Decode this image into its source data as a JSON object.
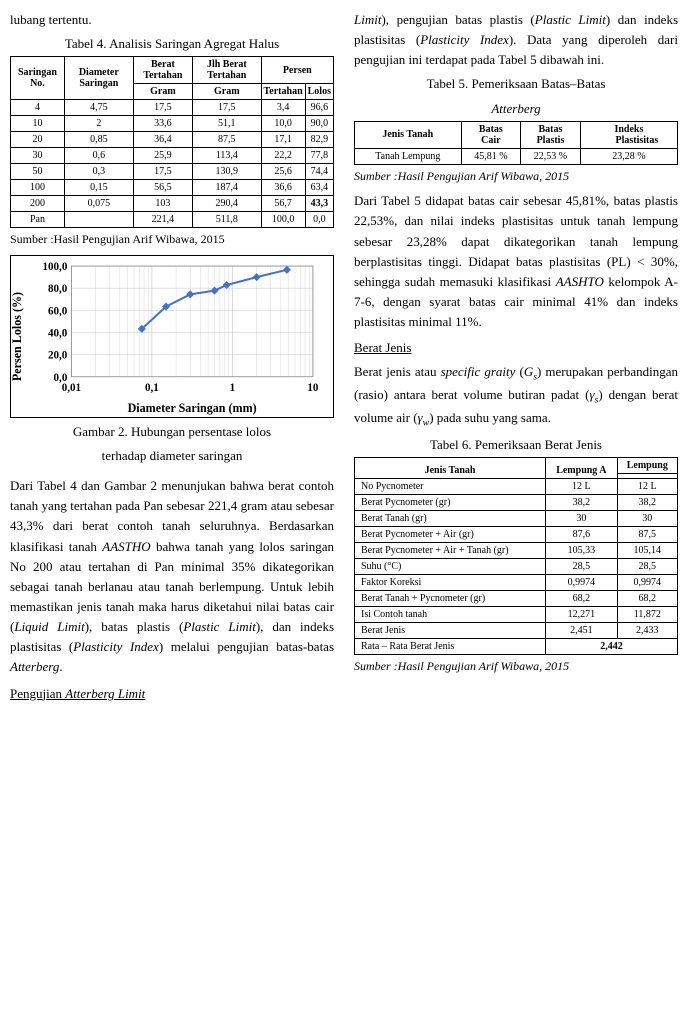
{
  "left": {
    "intro": "lubang tertentu.",
    "table4": {
      "caption": "Tabel 4. Analisis Saringan Agregat Halus",
      "headers": {
        "saringan": "Saringan No.",
        "diameter": "Diameter Saringan",
        "berat": "Berat Tertahan",
        "jlh": "Jlh Berat Tertahan",
        "persen": "Persen",
        "gram": "Gram",
        "tertahan": "Tertahan",
        "lolos": "Lolos"
      },
      "rows": [
        [
          "4",
          "4,75",
          "17,5",
          "17,5",
          "3,4",
          "96,6"
        ],
        [
          "10",
          "2",
          "33,6",
          "51,1",
          "10,0",
          "90,0"
        ],
        [
          "20",
          "0,85",
          "36,4",
          "87,5",
          "17,1",
          "82,9"
        ],
        [
          "30",
          "0,6",
          "25,9",
          "113,4",
          "22,2",
          "77,8"
        ],
        [
          "50",
          "0,3",
          "17,5",
          "130,9",
          "25,6",
          "74,4"
        ],
        [
          "100",
          "0,15",
          "56,5",
          "187,4",
          "36,6",
          "63,4"
        ],
        [
          "200",
          "0,075",
          "103",
          "290,4",
          "56,7",
          "43,3"
        ],
        [
          "Pan",
          "",
          "221,4",
          "511,8",
          "100,0",
          "0,0"
        ]
      ],
      "source": "Sumber :Hasil Pengujian Arif Wibawa, 2015"
    },
    "chart": {
      "ylabel": "Persen Lolos (%)",
      "xlabel": "Diameter Saringan (mm)",
      "yticks": [
        "0,0",
        "20,0",
        "40,0",
        "60,0",
        "80,0",
        "100,0"
      ],
      "xticks": [
        "0,01",
        "0,1",
        "1",
        "10"
      ],
      "series_color": "#4472c4",
      "marker_shape": "diamond",
      "grid_color": "#d0d0d0",
      "points_log": [
        [
          -1.125,
          43.3
        ],
        [
          -0.824,
          63.4
        ],
        [
          -0.523,
          74.4
        ],
        [
          -0.222,
          77.8
        ],
        [
          -0.071,
          82.9
        ],
        [
          0.301,
          90.0
        ],
        [
          0.677,
          96.6
        ]
      ],
      "xlim_log": [
        -2,
        1
      ],
      "ylim": [
        0,
        100
      ]
    },
    "fig2_caption1": "Gambar 2. Hubungan persentase lolos",
    "fig2_caption2": "terhadap diameter saringan",
    "para1": "Dari Tabel 4 dan Gambar 2 menunjukan bahwa berat contoh tanah yang tertahan pada Pan sebesar 221,4 gram atau sebesar 43,3% dari berat contoh tanah seluruhnya. Berdasarkan klasifikasi tanah ",
    "para1_ital1": "AASTHO",
    "para1b": " bahwa tanah yang lolos saringan No 200 atau tertahan di Pan minimal 35% dikategorikan sebagai tanah berlanau atau tanah berlempung. Untuk lebih memastikan jenis tanah maka harus diketahui nilai batas cair (",
    "para1_ital2": "Liquid Limit",
    "para1c": "), batas plastis (",
    "para1_ital3": "Plastic Limit",
    "para1d": "), dan indeks plastisitas (",
    "para1_ital4": "Plasticity Index",
    "para1e": ") melalui pengujian batas-batas ",
    "para1_ital5": "Atterberg",
    "para1f": ".",
    "heading_atterberg": "Pengujian ",
    "heading_atterberg_ital": "Atterberg Limit"
  },
  "right": {
    "para0a": "Limit",
    "para0b": "), pengujian batas plastis (",
    "para0c": "Plastic Limit",
    "para0d": ") dan indeks plastisitas (",
    "para0e": "Plasticity Index",
    "para0f": "). Data yang diperoleh dari pengujian ini terdapat pada Tabel 5 dibawah ini.",
    "table5": {
      "caption1": "Tabel 5. Pemeriksaan Batas–Batas",
      "caption2": "Atterberg",
      "headers": {
        "jenis": "Jenis Tanah",
        "cair1": "Batas",
        "cair2": "Cair",
        "plastis1": "Batas",
        "plastis2": "Plastis",
        "indeks1": "Indeks",
        "indeks2": "Plastisitas"
      },
      "row": [
        "Tanah Lempung",
        "45,81 %",
        "22,53 %",
        "23,28 %"
      ],
      "source": "Sumber :Hasil Pengujian Arif Wibawa, 2015"
    },
    "para1": "Dari Tabel 5 didapat batas cair sebesar 45,81%, batas plastis 22,53%, dan nilai indeks plastisitas untuk tanah lempung sebesar 23,28% dapat dikategorikan tanah lempung berplastisitas tinggi. Didapat batas plastisitas (PL) < 30%, sehingga sudah memasuki klasifikasi ",
    "para1_ital": "AASHTO",
    "para1b": " kelompok A-7-6, dengan syarat batas cair minimal 41% dan indeks plastisitas minimal 11%.",
    "heading_bj": "Berat Jenis",
    "para2a": "Berat jenis atau ",
    "para2_ital1": "specific graity",
    "para2b": " (",
    "para2_gs": "G",
    "para2_gs_sub": "s",
    "para2c": ") merupakan perbandingan (rasio) antara berat volume butiran padat (",
    "para2_gamma_s": "γ",
    "para2_gamma_s_sub": "s",
    "para2d": ") dengan berat volume air (",
    "para2_gamma_w": "γ",
    "para2_gamma_w_sub": "w",
    "para2e": ") pada suhu yang sama.",
    "table6": {
      "caption": "Tabel 6. Pemeriksaan Berat Jenis",
      "headers": {
        "jenis": "Jenis Tanah",
        "lempungA": "Lempung A",
        "lempung": "Lempung"
      },
      "rows": [
        [
          "No Pycnometer",
          "12 L",
          "12 L"
        ],
        [
          "Berat Pycnometer (gr)",
          "38,2",
          "38,2"
        ],
        [
          "Berat Tanah (gr)",
          "30",
          "30"
        ],
        [
          "Berat Pycnometer + Air (gr)",
          "87,6",
          "87,5"
        ],
        [
          "Berat Pycnometer + Air + Tanah (gr)",
          "105,33",
          "105,14"
        ],
        [
          "Suhu (°C)",
          "28,5",
          "28,5"
        ],
        [
          "Faktor Koreksi",
          "0,9974",
          "0,9974"
        ],
        [
          "Berat Tanah + Pycnometer (gr)",
          "68,2",
          "68,2"
        ],
        [
          "Isi Contoh tanah",
          "12,271",
          "11,872"
        ],
        [
          "Berat Jenis",
          "2,451",
          "2,433"
        ]
      ],
      "avg_label": "Rata – Rata Berat Jenis",
      "avg_value": "2,442",
      "source": "Sumber :Hasil Pengujian Arif Wibawa, 2015"
    }
  }
}
